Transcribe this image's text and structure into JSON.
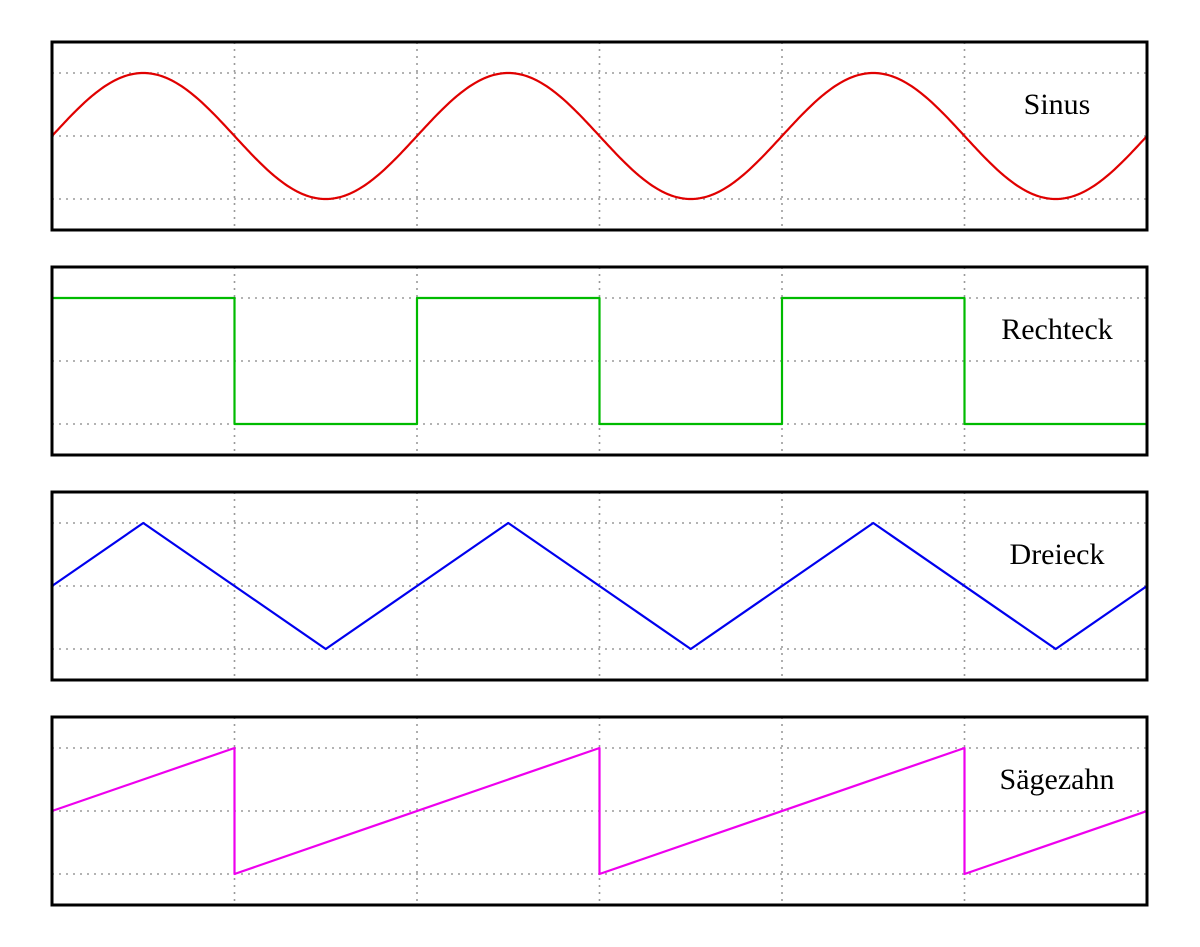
{
  "panels": [
    {
      "label": "Sinus",
      "waveform": "sine",
      "color": "#e00000"
    },
    {
      "label": "Rechteck",
      "waveform": "square",
      "color": "#00bb00"
    },
    {
      "label": "Dreieck",
      "waveform": "triangle",
      "color": "#0000ee"
    },
    {
      "label": "Sägezahn",
      "waveform": "sawtooth",
      "color": "#ee00ee"
    }
  ],
  "periods_shown": 3,
  "grid": {
    "vertical_divisions": 6,
    "horizontal_levels": [
      "max",
      "zero",
      "min"
    ]
  }
}
